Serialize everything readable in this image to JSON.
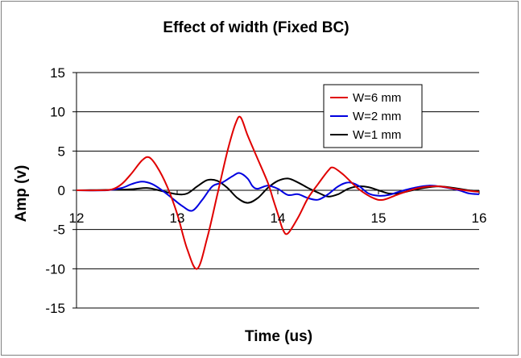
{
  "chart_data": {
    "type": "line",
    "title": "Effect of width (Fixed BC)",
    "xlabel": "Time (us)",
    "ylabel": "Amp (v)",
    "xlim": [
      12,
      16
    ],
    "ylim": [
      -15,
      15
    ],
    "xticks": [
      12,
      13,
      14,
      15,
      16
    ],
    "yticks": [
      15,
      10,
      5,
      0,
      -5,
      -10,
      -15
    ],
    "grid": "horizontal",
    "legend": "inside top-right",
    "series": [
      {
        "name": "W=6 mm",
        "color": "#e00000",
        "points": [
          [
            12.0,
            0
          ],
          [
            12.2,
            0
          ],
          [
            12.35,
            0.1
          ],
          [
            12.45,
            0.8
          ],
          [
            12.55,
            2.2
          ],
          [
            12.65,
            3.8
          ],
          [
            12.72,
            4.2
          ],
          [
            12.8,
            3.0
          ],
          [
            12.9,
            0.5
          ],
          [
            13.0,
            -3.0
          ],
          [
            13.1,
            -7.5
          ],
          [
            13.2,
            -10.0
          ],
          [
            13.3,
            -6.0
          ],
          [
            13.4,
            -0.5
          ],
          [
            13.5,
            5.0
          ],
          [
            13.58,
            8.5
          ],
          [
            13.63,
            9.3
          ],
          [
            13.7,
            7.0
          ],
          [
            13.8,
            4.0
          ],
          [
            13.9,
            1.0
          ],
          [
            13.95,
            -1.0
          ],
          [
            14.0,
            -3.0
          ],
          [
            14.05,
            -5.0
          ],
          [
            14.1,
            -5.5
          ],
          [
            14.2,
            -3.5
          ],
          [
            14.3,
            -1.0
          ],
          [
            14.4,
            0.8
          ],
          [
            14.5,
            2.5
          ],
          [
            14.55,
            2.9
          ],
          [
            14.65,
            2.0
          ],
          [
            14.8,
            0.2
          ],
          [
            14.95,
            -1.0
          ],
          [
            15.05,
            -1.2
          ],
          [
            15.2,
            -0.5
          ],
          [
            15.4,
            0.3
          ],
          [
            15.6,
            0.5
          ],
          [
            15.8,
            0.1
          ],
          [
            16.0,
            -0.2
          ]
        ]
      },
      {
        "name": "W=2 mm",
        "color": "#0000e0",
        "points": [
          [
            12.0,
            0
          ],
          [
            12.3,
            0
          ],
          [
            12.45,
            0.3
          ],
          [
            12.55,
            0.8
          ],
          [
            12.65,
            1.1
          ],
          [
            12.75,
            0.8
          ],
          [
            12.85,
            0
          ],
          [
            12.95,
            -1.0
          ],
          [
            13.05,
            -2.0
          ],
          [
            13.15,
            -2.6
          ],
          [
            13.25,
            -1.2
          ],
          [
            13.35,
            0.5
          ],
          [
            13.45,
            1.0
          ],
          [
            13.55,
            1.8
          ],
          [
            13.62,
            2.2
          ],
          [
            13.7,
            1.5
          ],
          [
            13.75,
            0.5
          ],
          [
            13.8,
            0.2
          ],
          [
            13.9,
            0.6
          ],
          [
            14.0,
            0.2
          ],
          [
            14.1,
            -0.6
          ],
          [
            14.2,
            -0.5
          ],
          [
            14.3,
            -1.0
          ],
          [
            14.4,
            -1.2
          ],
          [
            14.5,
            -0.5
          ],
          [
            14.6,
            0.5
          ],
          [
            14.7,
            1.0
          ],
          [
            14.8,
            0.6
          ],
          [
            14.9,
            -0.4
          ],
          [
            15.0,
            -0.7
          ],
          [
            15.1,
            -0.6
          ],
          [
            15.2,
            -0.2
          ],
          [
            15.35,
            0.3
          ],
          [
            15.5,
            0.6
          ],
          [
            15.65,
            0.4
          ],
          [
            15.8,
            0.0
          ],
          [
            15.9,
            -0.4
          ],
          [
            16.0,
            -0.5
          ]
        ]
      },
      {
        "name": "W=1 mm",
        "color": "#000000",
        "points": [
          [
            12.0,
            0
          ],
          [
            12.5,
            0.1
          ],
          [
            12.7,
            0.3
          ],
          [
            12.85,
            -0.1
          ],
          [
            13.0,
            -0.5
          ],
          [
            13.1,
            -0.4
          ],
          [
            13.2,
            0.5
          ],
          [
            13.3,
            1.3
          ],
          [
            13.4,
            1.2
          ],
          [
            13.5,
            0.3
          ],
          [
            13.6,
            -1.0
          ],
          [
            13.7,
            -1.6
          ],
          [
            13.8,
            -1.0
          ],
          [
            13.9,
            0.3
          ],
          [
            14.0,
            1.2
          ],
          [
            14.1,
            1.5
          ],
          [
            14.2,
            1.0
          ],
          [
            14.3,
            0.3
          ],
          [
            14.4,
            -0.3
          ],
          [
            14.5,
            -0.8
          ],
          [
            14.6,
            -0.5
          ],
          [
            14.7,
            0.2
          ],
          [
            14.8,
            0.5
          ],
          [
            14.9,
            0.4
          ],
          [
            15.0,
            0.0
          ],
          [
            15.1,
            -0.4
          ],
          [
            15.2,
            -0.4
          ],
          [
            15.3,
            -0.1
          ],
          [
            15.45,
            0.3
          ],
          [
            15.6,
            0.5
          ],
          [
            15.75,
            0.3
          ],
          [
            15.9,
            0.0
          ],
          [
            16.0,
            -0.1
          ]
        ]
      }
    ]
  }
}
